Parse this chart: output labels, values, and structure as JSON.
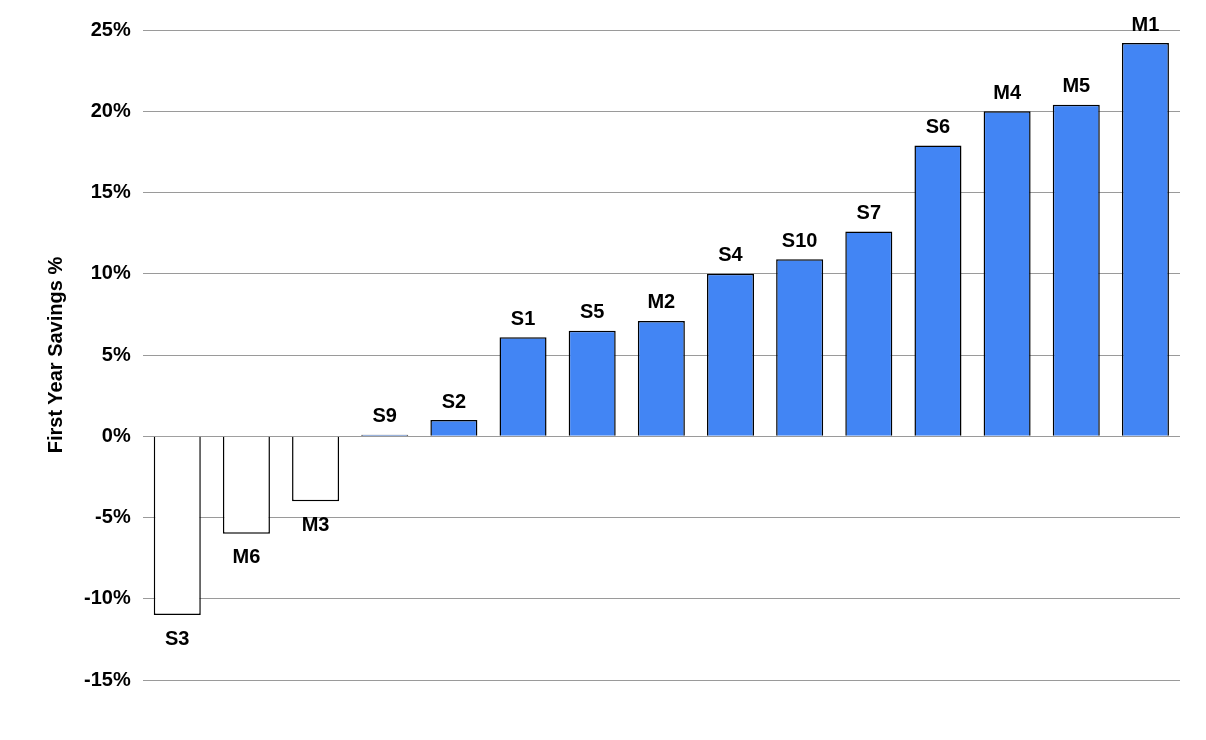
{
  "chart_data": {
    "type": "bar",
    "ylabel": "First Year Savings %",
    "categories": [
      "S3",
      "M6",
      "M3",
      "S9",
      "S2",
      "S1",
      "S5",
      "M2",
      "S4",
      "S10",
      "S7",
      "S6",
      "M4",
      "M5",
      "M1"
    ],
    "values": [
      -11.0,
      -6.0,
      -4.0,
      0.1,
      1.0,
      6.1,
      6.5,
      7.1,
      10.0,
      10.9,
      12.6,
      17.9,
      20.0,
      20.4,
      24.2
    ],
    "colors": [
      "#ffffff",
      "#ffffff",
      "#ffffff",
      "#4285f4",
      "#4285f4",
      "#4285f4",
      "#4285f4",
      "#4285f4",
      "#4285f4",
      "#4285f4",
      "#4285f4",
      "#4285f4",
      "#4285f4",
      "#4285f4",
      "#4285f4"
    ],
    "ylim": [
      -15,
      25
    ],
    "yticks": [
      {
        "value": -15,
        "label": "-15%"
      },
      {
        "value": -10,
        "label": "-10%"
      },
      {
        "value": -5,
        "label": "-5%"
      },
      {
        "value": 0,
        "label": "0%"
      },
      {
        "value": 5,
        "label": "5%"
      },
      {
        "value": 10,
        "label": "10%"
      },
      {
        "value": 15,
        "label": "15%"
      },
      {
        "value": 20,
        "label": "20%"
      },
      {
        "value": 25,
        "label": "25%"
      }
    ],
    "grid": "y",
    "tick_labels": "y",
    "legend": false
  }
}
